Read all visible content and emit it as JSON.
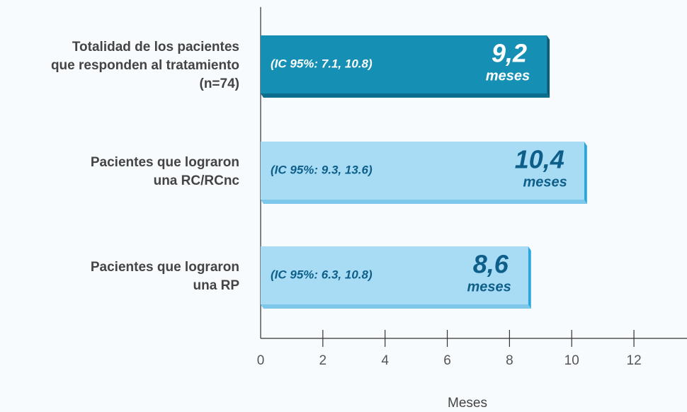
{
  "chart_data": {
    "type": "hbar",
    "categories": [
      "Totalidad de los pacientes\nque responden al tratamiento\n(n=74)",
      "Pacientes que lograron\nuna RC/RCnc",
      "Pacientes que lograron\nuna RP"
    ],
    "values": [
      9.2,
      10.4,
      8.6
    ],
    "value_labels": [
      "9,2",
      "10,4",
      "8,6"
    ],
    "unit_label": "meses",
    "annotations": [
      "(IC 95%: 7.1, 10.8)",
      "(IC 95%: 9.3, 13.6)",
      "(IC 95%: 6.3, 10.8)"
    ],
    "colors": [
      "#1590b4",
      "#a8dcf5",
      "#a8dcf5"
    ],
    "text_colors": [
      "#ffffff",
      "#0d5f8a",
      "#0d5f8a"
    ],
    "xlabel": "Meses",
    "xlim": [
      0,
      13
    ],
    "xticks": [
      0,
      2,
      4,
      6,
      8,
      10,
      12
    ]
  }
}
